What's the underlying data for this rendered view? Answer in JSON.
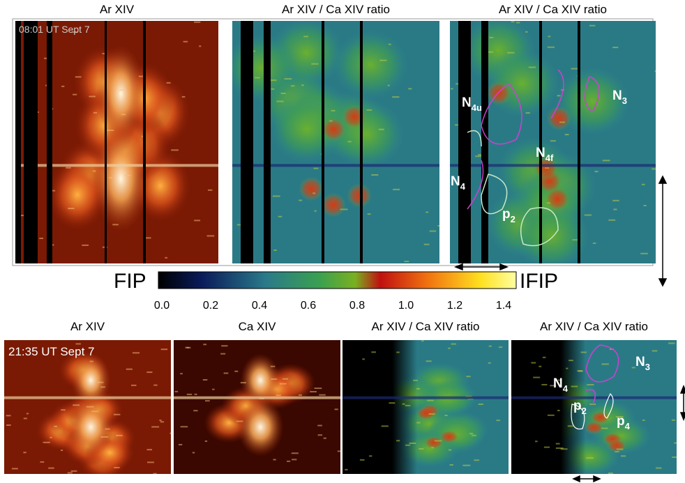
{
  "top_row": {
    "panels": [
      {
        "title": "Ar XIV",
        "timestamp": "08:01 UT Sept 7"
      },
      {
        "title": "Ar XIV / Ca XIV ratio"
      },
      {
        "title": "Ar XIV / Ca XIV ratio",
        "labels": [
          {
            "base": "N",
            "sub": "4u"
          },
          {
            "base": "N",
            "sub": "3"
          },
          {
            "base": "N",
            "sub": "4f"
          },
          {
            "base": "N",
            "sub": "4"
          },
          {
            "base": "p",
            "sub": "2"
          }
        ]
      }
    ]
  },
  "colorbar": {
    "left_label": "FIP",
    "right_label": "IFIP",
    "ticks": [
      "0.0",
      "0.2",
      "0.4",
      "0.6",
      "0.8",
      "1.0",
      "1.2",
      "1.4"
    ]
  },
  "bottom_row": {
    "panels": [
      {
        "title": "Ar XIV",
        "timestamp": "21:35 UT Sept 7"
      },
      {
        "title": "Ca XIV"
      },
      {
        "title": "Ar XIV / Ca XIV ratio"
      },
      {
        "title": "Ar XIV / Ca XIV ratio",
        "labels": [
          {
            "base": "N",
            "sub": "3"
          },
          {
            "base": "N",
            "sub": "4"
          },
          {
            "base": "p",
            "sub": "2"
          },
          {
            "base": "p",
            "sub": "4"
          }
        ]
      }
    ]
  }
}
